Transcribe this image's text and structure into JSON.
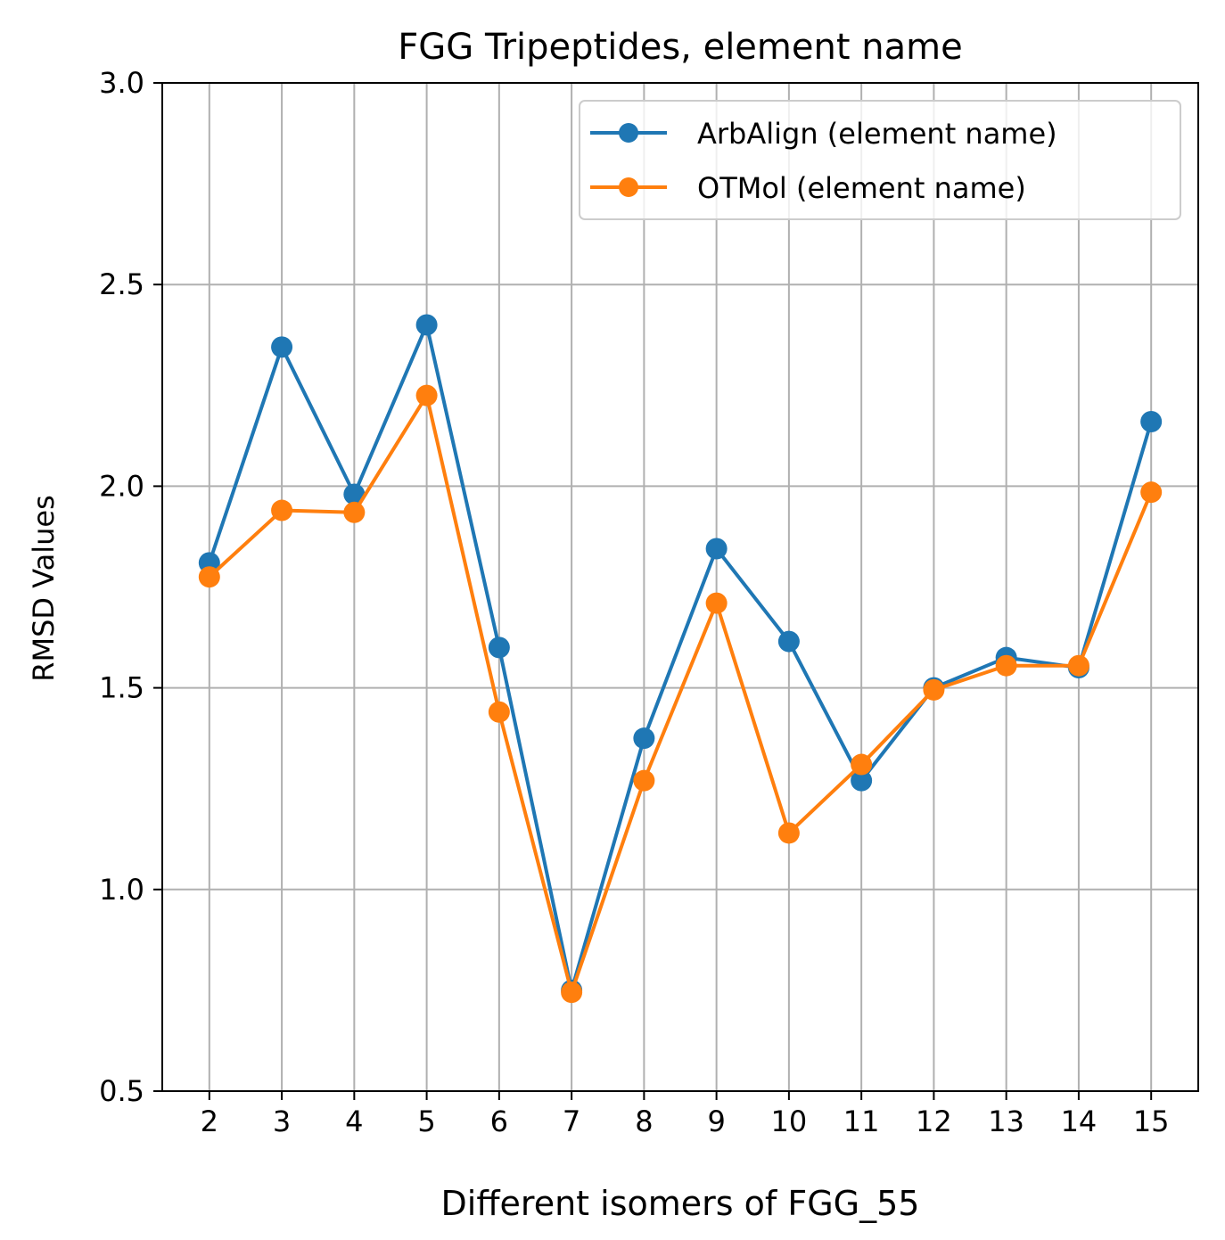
{
  "chart_data": {
    "type": "line",
    "title": "FGG Tripeptides, element name",
    "xlabel": "Different isomers of FGG_55",
    "ylabel": "RMSD Values",
    "x": [
      2,
      3,
      4,
      5,
      6,
      7,
      8,
      9,
      10,
      11,
      12,
      13,
      14,
      15
    ],
    "xlim": [
      1.35,
      15.65
    ],
    "ylim": [
      0.5,
      3.0
    ],
    "yticks": [
      "0.5",
      "1.0",
      "1.5",
      "2.0",
      "2.5",
      "3.0"
    ],
    "grid": true,
    "legend_position": "top-right",
    "series": [
      {
        "name": "ArbAlign (element name)",
        "color": "#1f77b4",
        "values": [
          1.81,
          2.345,
          1.98,
          2.4,
          1.6,
          0.75,
          1.375,
          1.845,
          1.615,
          1.27,
          1.5,
          1.575,
          1.55,
          2.16
        ]
      },
      {
        "name": "OTMol (element name)",
        "color": "#ff7f0e",
        "values": [
          1.775,
          1.94,
          1.935,
          2.225,
          1.44,
          0.745,
          1.27,
          1.71,
          1.14,
          1.31,
          1.495,
          1.555,
          1.555,
          1.985
        ]
      }
    ]
  }
}
